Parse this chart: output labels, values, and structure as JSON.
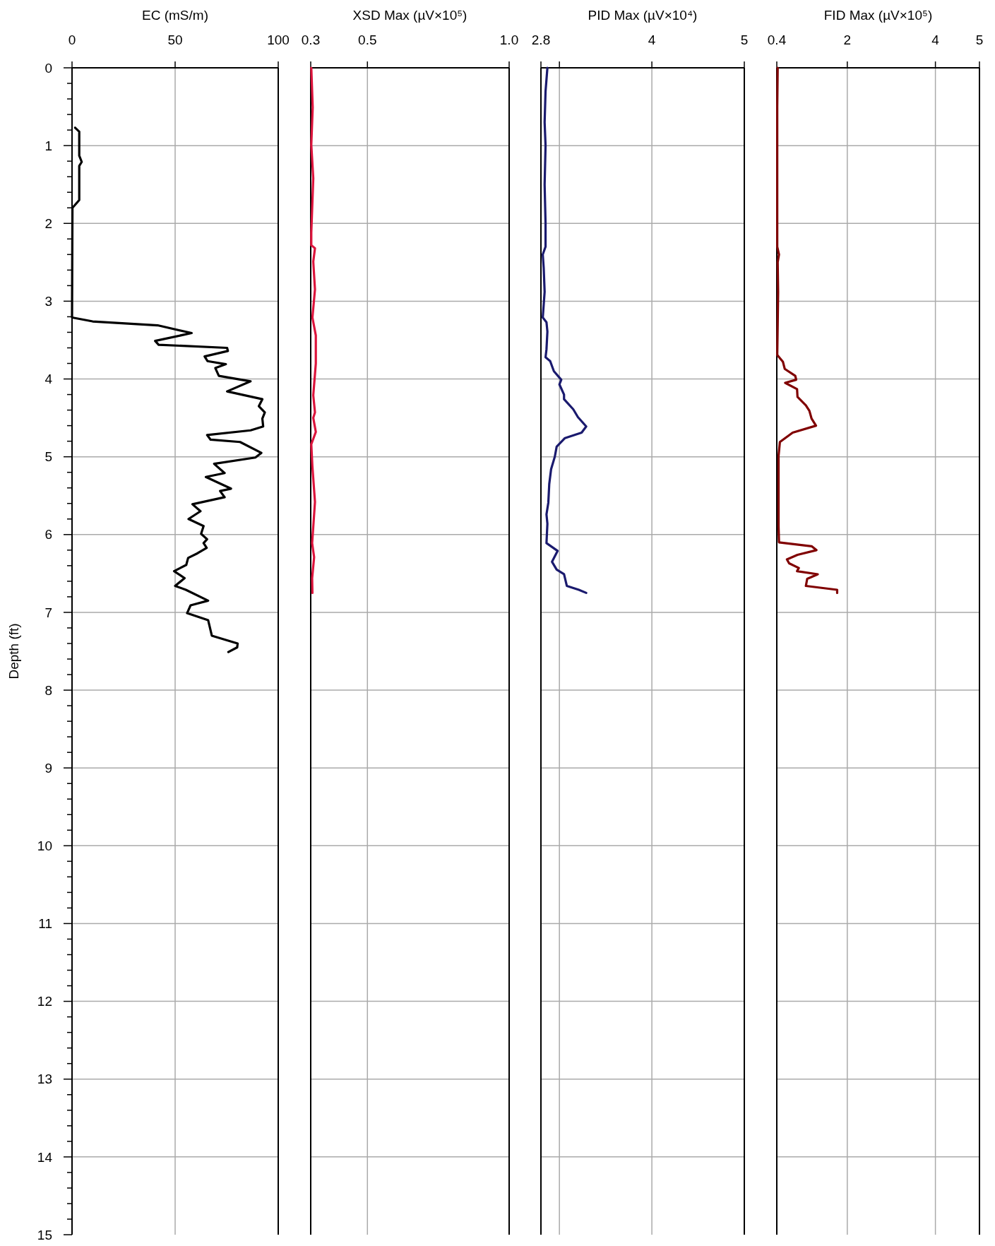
{
  "chart_data": [
    {
      "type": "line",
      "title": "EC (mS/m)",
      "ylabel": "Depth (ft)",
      "xlim": [
        0,
        100
      ],
      "xticks": [
        0,
        50,
        100
      ],
      "ylim": [
        15,
        0
      ],
      "yticks": [
        0,
        {
          "value": 0.2,
          "label": null
        },
        {
          "value": 0.4,
          "label": null
        },
        {
          "value": 0.6,
          "label": null
        },
        {
          "value": 0.8,
          "label": null
        },
        1,
        {
          "value": 1.2,
          "label": null
        },
        {
          "value": 1.4,
          "label": null
        },
        {
          "value": 1.6,
          "label": null
        },
        {
          "value": 1.8,
          "label": null
        },
        2,
        {
          "value": 2.2,
          "label": null
        },
        {
          "value": 2.4,
          "label": null
        },
        {
          "value": 2.6,
          "label": null
        },
        {
          "value": 2.8,
          "label": null
        },
        3,
        {
          "value": 3.2,
          "label": null
        },
        {
          "value": 3.4,
          "label": null
        },
        {
          "value": 3.6,
          "label": null
        },
        {
          "value": 3.8,
          "label": null
        },
        4,
        {
          "value": 4.2,
          "label": null
        },
        {
          "value": 4.4,
          "label": null
        },
        {
          "value": 4.6,
          "label": null
        },
        {
          "value": 4.8,
          "label": null
        },
        5,
        {
          "value": 5.2,
          "label": null
        },
        {
          "value": 5.4,
          "label": null
        },
        {
          "value": 5.6,
          "label": null
        },
        {
          "value": 5.8,
          "label": null
        },
        6,
        {
          "value": 6.2,
          "label": null
        },
        {
          "value": 6.4,
          "label": null
        },
        {
          "value": 6.6,
          "label": null
        },
        {
          "value": 6.8,
          "label": null
        },
        7,
        {
          "value": 7.2,
          "label": null
        },
        {
          "value": 7.4,
          "label": null
        },
        {
          "value": 7.6,
          "label": null
        },
        {
          "value": 7.8,
          "label": null
        },
        8,
        {
          "value": 8.2,
          "label": null
        },
        {
          "value": 8.4,
          "label": null
        },
        {
          "value": 8.6,
          "label": null
        },
        {
          "value": 8.8,
          "label": null
        },
        9,
        {
          "value": 9.2,
          "label": null
        },
        {
          "value": 9.4,
          "label": null
        },
        {
          "value": 9.6,
          "label": null
        },
        {
          "value": 9.8,
          "label": null
        },
        10,
        {
          "value": 10.2,
          "label": null
        },
        {
          "value": 10.4,
          "label": null
        },
        {
          "value": 10.6,
          "label": null
        },
        {
          "value": 10.8,
          "label": null
        },
        11,
        {
          "value": 11.2,
          "label": null
        },
        {
          "value": 11.4,
          "label": null
        },
        {
          "value": 11.6,
          "label": null
        },
        {
          "value": 11.8,
          "label": null
        },
        12,
        {
          "value": 12.2,
          "label": null
        },
        {
          "value": 12.4,
          "label": null
        },
        {
          "value": 12.6,
          "label": null
        },
        {
          "value": 12.8,
          "label": null
        },
        13,
        {
          "value": 13.2,
          "label": null
        },
        {
          "value": 13.4,
          "label": null
        },
        {
          "value": 13.6,
          "label": null
        },
        {
          "value": 13.8,
          "label": null
        },
        14,
        {
          "value": 14.2,
          "label": null
        },
        {
          "value": 14.4,
          "label": null
        },
        {
          "value": 14.6,
          "label": null
        },
        {
          "value": 14.8,
          "label": null
        },
        15
      ],
      "grid": true,
      "marker": "none",
      "line_style": "solid",
      "series": [
        {
          "color": "#000000",
          "x": [
            1.5,
            3.5,
            3.5,
            4.7,
            3.5,
            3.5,
            0.2,
            0,
            10,
            41.5,
            58,
            40.3,
            42,
            75.2,
            75.6,
            64.3,
            65.7,
            74.6,
            69.5,
            71.2,
            86.6,
            75.2,
            92.3,
            90.6,
            93.5,
            92.3,
            92.7,
            86.6,
            65.5,
            67.2,
            81.5,
            91.8,
            88.9,
            68.9,
            74,
            64.9,
            77.1,
            71.8,
            74,
            58.4,
            62.3,
            56.5,
            63.8,
            62.6,
            65.5,
            63.8,
            65.3,
            60.9,
            56.3,
            55.4,
            49.5,
            54.6,
            50,
            55.2,
            66,
            57.5,
            55.8,
            66,
            67.8,
            80.3,
            80.1,
            75.8
          ],
          "values": [
            0.77,
            0.82,
            1.13,
            1.21,
            1.26,
            1.7,
            1.8,
            3.21,
            3.26,
            3.31,
            3.41,
            3.51,
            3.56,
            3.6,
            3.64,
            3.71,
            3.77,
            3.81,
            3.86,
            3.96,
            4.03,
            4.16,
            4.26,
            4.35,
            4.43,
            4.51,
            4.61,
            4.66,
            4.72,
            4.78,
            4.81,
            4.95,
            5.01,
            5.09,
            5.21,
            5.26,
            5.41,
            5.44,
            5.52,
            5.61,
            5.7,
            5.8,
            5.89,
            5.99,
            6.06,
            6.11,
            6.17,
            6.24,
            6.3,
            6.39,
            6.47,
            6.56,
            6.66,
            6.71,
            6.85,
            6.91,
            7.01,
            7.1,
            7.3,
            7.4,
            7.45,
            7.51
          ]
        }
      ]
    },
    {
      "type": "line",
      "title": "XSD Max (µV×10⁵)",
      "xlim": [
        0.3,
        1.0
      ],
      "xticks": [
        0.3,
        0.5,
        {
          "value": 1.0,
          "label": "1.0"
        }
      ],
      "ylim": [
        15,
        0
      ],
      "yticks": [
        0,
        1,
        2,
        3,
        4,
        5,
        6,
        7,
        8,
        9,
        10,
        11,
        12,
        13,
        14,
        15
      ],
      "tick_labels": "x",
      "grid": true,
      "marker": "none",
      "line_style": "solid",
      "series": [
        {
          "color": "#dc143c",
          "x": [
            0.302,
            0.307,
            0.302,
            0.309,
            0.302,
            0.302,
            0.315,
            0.309,
            0.315,
            0.306,
            0.318,
            0.318,
            0.309,
            0.315,
            0.309,
            0.318,
            0.302,
            0.306,
            0.315,
            0.309,
            0.305,
            0.312,
            0.305,
            0.306
          ],
          "values": [
            0,
            0.51,
            0.99,
            1.42,
            2.12,
            2.28,
            2.32,
            2.49,
            2.85,
            3.21,
            3.44,
            3.8,
            4.21,
            4.43,
            4.5,
            4.68,
            4.84,
            5.13,
            5.58,
            5.9,
            6.11,
            6.29,
            6.56,
            6.75
          ]
        }
      ]
    },
    {
      "type": "line",
      "title": "PID Max (µV×10⁴)",
      "xlim": [
        2.8,
        5
      ],
      "xticks": [
        2.8,
        {
          "value": 3,
          "label": null
        },
        4,
        5
      ],
      "ylim": [
        15,
        0
      ],
      "yticks": [
        0,
        1,
        2,
        3,
        4,
        5,
        6,
        7,
        8,
        9,
        10,
        11,
        12,
        13,
        14,
        15
      ],
      "tick_labels": "x",
      "grid": true,
      "marker": "none",
      "line_style": "solid",
      "series": [
        {
          "color": "#1a1a6e",
          "x": [
            2.87,
            2.85,
            2.84,
            2.85,
            2.84,
            2.85,
            2.85,
            2.82,
            2.83,
            2.84,
            2.82,
            2.86,
            2.87,
            2.86,
            2.85,
            2.9,
            2.94,
            3.02,
            3.0,
            3.05,
            3.05,
            3.15,
            3.2,
            3.29,
            3.24,
            3.06,
            2.97,
            2.95,
            2.91,
            2.89,
            2.88,
            2.86,
            2.87,
            2.86,
            2.98,
            2.92,
            2.97,
            3.05,
            3.08,
            3.21,
            3.29
          ],
          "values": [
            0,
            0.3,
            0.7,
            1.0,
            1.5,
            2.0,
            2.3,
            2.4,
            2.57,
            2.88,
            3.21,
            3.27,
            3.39,
            3.62,
            3.72,
            3.77,
            3.9,
            4.01,
            4.07,
            4.2,
            4.26,
            4.39,
            4.49,
            4.61,
            4.69,
            4.76,
            4.87,
            5.0,
            5.16,
            5.35,
            5.59,
            5.74,
            5.86,
            6.11,
            6.21,
            6.35,
            6.45,
            6.51,
            6.66,
            6.71,
            6.75
          ]
        }
      ]
    },
    {
      "type": "line",
      "title": "FID Max (µV×10⁵)",
      "xlim": [
        0.4,
        5
      ],
      "xticks": [
        0.4,
        2,
        4,
        5
      ],
      "ylim": [
        15,
        0
      ],
      "yticks": [
        0,
        1,
        2,
        3,
        4,
        5,
        6,
        7,
        8,
        9,
        10,
        11,
        12,
        13,
        14,
        15
      ],
      "tick_labels": "x",
      "grid": true,
      "marker": "none",
      "line_style": "solid",
      "series": [
        {
          "color": "#800000",
          "x": [
            0.42,
            0.41,
            0.41,
            0.41,
            0.41,
            0.41,
            0.45,
            0.42,
            0.43,
            0.42,
            0.41,
            0.54,
            0.58,
            0.82,
            0.84,
            0.59,
            0.86,
            0.87,
            1.06,
            1.14,
            1.19,
            1.29,
            0.76,
            0.47,
            0.44,
            0.44,
            0.45,
            1.19,
            1.3,
            0.87,
            0.63,
            0.68,
            0.9,
            0.86,
            1.33,
            1.09,
            1.06,
            1.77,
            1.77
          ],
          "values": [
            0,
            0.5,
            1.0,
            1.5,
            2.0,
            2.3,
            2.4,
            2.5,
            2.88,
            3.3,
            3.69,
            3.78,
            3.87,
            3.96,
            4.01,
            4.05,
            4.13,
            4.23,
            4.34,
            4.41,
            4.51,
            4.6,
            4.69,
            4.81,
            4.99,
            5.89,
            6.1,
            6.15,
            6.2,
            6.26,
            6.32,
            6.37,
            6.43,
            6.47,
            6.51,
            6.57,
            6.66,
            6.71,
            6.75
          ]
        }
      ]
    }
  ]
}
